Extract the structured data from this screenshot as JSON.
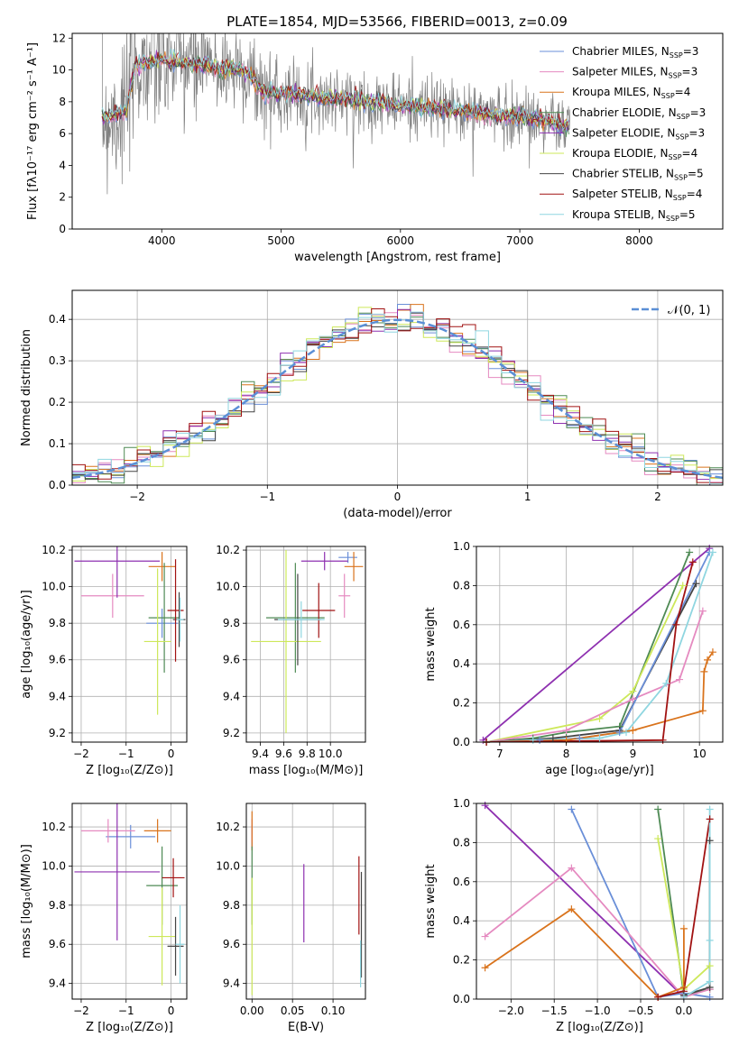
{
  "figure_title": "PLATE=1854, MJD=53566, FIBERID=0013, z=0.09",
  "series": [
    {
      "name": "Chabrier MILES",
      "nssp": "3",
      "color": "#6a8fd8"
    },
    {
      "name": "Salpeter MILES",
      "nssp": "3",
      "color": "#e58ac0"
    },
    {
      "name": "Kroupa MILES",
      "nssp": "4",
      "color": "#d9731c"
    },
    {
      "name": "Chabrier ELODIE",
      "nssp": "3",
      "color": "#4e8a54"
    },
    {
      "name": "Salpeter ELODIE",
      "nssp": "3",
      "color": "#8e30b0"
    },
    {
      "name": "Kroupa ELODIE",
      "nssp": "4",
      "color": "#cde85a"
    },
    {
      "name": "Chabrier STELIB",
      "nssp": "5",
      "color": "#444444"
    },
    {
      "name": "Salpeter STELIB",
      "nssp": "4",
      "color": "#a11212"
    },
    {
      "name": "Kroupa STELIB",
      "nssp": "5",
      "color": "#8fd6e0"
    }
  ],
  "chart_data": [
    {
      "id": "spectrum",
      "type": "line",
      "xlabel": "wavelength [Angstrom, rest frame]",
      "ylabel": "Flux [fλ10⁻¹⁷ erg cm⁻² s⁻¹ A⁻¹]",
      "xlim": [
        3250,
        8700
      ],
      "ylim": [
        0,
        12.3
      ],
      "xticks": [
        4000,
        5000,
        6000,
        7000,
        8000
      ],
      "yticks": [
        0,
        2,
        4,
        6,
        8,
        10,
        12
      ],
      "data_color": "#808080",
      "model_shape": [
        [
          3500,
          7.0
        ],
        [
          3700,
          7.4
        ],
        [
          3780,
          10.3
        ],
        [
          4000,
          10.6
        ],
        [
          4200,
          10.5
        ],
        [
          4400,
          10.2
        ],
        [
          4700,
          10.0
        ],
        [
          4850,
          8.6
        ],
        [
          5200,
          8.4
        ],
        [
          5600,
          8.1
        ],
        [
          6000,
          7.8
        ],
        [
          6400,
          7.5
        ],
        [
          6800,
          7.2
        ],
        [
          7200,
          6.9
        ],
        [
          7400,
          6.4
        ]
      ]
    },
    {
      "id": "residuals",
      "type": "histogram",
      "xlabel": "(data-model)/error",
      "ylabel": "Normed distribution",
      "xlim": [
        -2.5,
        2.5
      ],
      "ylim": [
        0,
        0.47
      ],
      "xticks": [
        -2,
        -1,
        0,
        1,
        2
      ],
      "yticks": [
        0.0,
        0.1,
        0.2,
        0.3,
        0.4
      ],
      "legend": "𝒩(0, 1)",
      "gaussian": {
        "mean": 0,
        "sigma": 1,
        "color": "#5b8fd6"
      },
      "bin_width": 0.1
    },
    {
      "id": "age-vs-Z",
      "type": "errorbar",
      "xlabel": "Z [log₁₀(Z/Z⊙)]",
      "ylabel": "age  [log₁₀(age/yr)]",
      "xlim": [
        -2.2,
        0.35
      ],
      "ylim": [
        9.15,
        10.22
      ],
      "xticks": [
        -2,
        -1,
        0
      ],
      "yticks": [
        9.2,
        9.4,
        9.6,
        9.8,
        10.0,
        10.2
      ],
      "points": [
        {
          "s": 0,
          "x": -0.2,
          "y": 9.8,
          "xerr": 0.35,
          "yerr": 0.08
        },
        {
          "s": 1,
          "x": -1.3,
          "y": 9.95,
          "xerr": 0.7,
          "yerr": 0.12
        },
        {
          "s": 2,
          "x": -0.2,
          "y": 10.11,
          "xerr": 0.3,
          "yerr": 0.08
        },
        {
          "s": 3,
          "x": -0.15,
          "y": 9.83,
          "xerr": 0.35,
          "yerr": 0.3
        },
        {
          "s": 4,
          "x": -1.2,
          "y": 10.14,
          "xerr": 0.95,
          "yerr": 0.2
        },
        {
          "s": 5,
          "x": -0.3,
          "y": 9.7,
          "xerr": 0.3,
          "yerr": 0.4
        },
        {
          "s": 6,
          "x": 0.18,
          "y": 9.82,
          "xerr": 0.14,
          "yerr": 0.15
        },
        {
          "s": 7,
          "x": 0.1,
          "y": 9.87,
          "xerr": 0.18,
          "yerr": 0.28
        },
        {
          "s": 8,
          "x": 0.2,
          "y": 9.82,
          "xerr": 0.08,
          "yerr": 0.12
        }
      ]
    },
    {
      "id": "age-vs-mass",
      "type": "errorbar",
      "xlabel": "mass [log₁₀(M/M⊙)]",
      "ylabel": "",
      "xlim": [
        9.28,
        10.3
      ],
      "ylim": [
        9.15,
        10.22
      ],
      "xticks": [
        9.4,
        9.6,
        9.8,
        10.0
      ],
      "yticks": [
        9.2,
        9.4,
        9.6,
        9.8,
        10.0,
        10.2
      ],
      "points": [
        {
          "s": 0,
          "x": 10.15,
          "y": 10.16,
          "xerr": 0.08,
          "yerr": 0.03
        },
        {
          "s": 1,
          "x": 10.12,
          "y": 9.95,
          "xerr": 0.05,
          "yerr": 0.12
        },
        {
          "s": 2,
          "x": 10.2,
          "y": 10.11,
          "xerr": 0.08,
          "yerr": 0.08
        },
        {
          "s": 3,
          "x": 9.7,
          "y": 9.83,
          "xerr": 0.25,
          "yerr": 0.3
        },
        {
          "s": 4,
          "x": 9.95,
          "y": 10.14,
          "xerr": 0.2,
          "yerr": 0.05
        },
        {
          "s": 5,
          "x": 9.62,
          "y": 9.7,
          "xerr": 0.3,
          "yerr": 0.5
        },
        {
          "s": 6,
          "x": 9.72,
          "y": 9.82,
          "xerr": 0.2,
          "yerr": 0.25
        },
        {
          "s": 7,
          "x": 9.9,
          "y": 9.87,
          "xerr": 0.14,
          "yerr": 0.15
        },
        {
          "s": 8,
          "x": 9.75,
          "y": 9.82,
          "xerr": 0.2,
          "yerr": 0.1
        }
      ]
    },
    {
      "id": "mass-weight-vs-age",
      "type": "line",
      "xlabel": "age  [log₁₀(age/yr)]",
      "ylabel": "mass weight",
      "xlim": [
        6.65,
        10.35
      ],
      "ylim": [
        0,
        1
      ],
      "xticks": [
        7,
        8,
        9,
        10
      ],
      "yticks": [
        0.0,
        0.2,
        0.4,
        0.6,
        0.8,
        1.0
      ],
      "lines": [
        {
          "s": 4,
          "x": [
            6.75,
            10.15
          ],
          "y": [
            0.01,
            0.99
          ]
        },
        {
          "s": 3,
          "x": [
            6.8,
            7.5,
            8.0,
            8.8,
            9.85
          ],
          "y": [
            0.0,
            0.02,
            0.05,
            0.08,
            0.97
          ]
        },
        {
          "s": 5,
          "x": [
            6.8,
            8.5,
            9.0,
            9.75
          ],
          "y": [
            0.0,
            0.12,
            0.26,
            0.8
          ]
        },
        {
          "s": 1,
          "x": [
            6.8,
            8.0,
            9.0,
            9.7,
            10.05
          ],
          "y": [
            0.0,
            0.06,
            0.22,
            0.32,
            0.67
          ]
        },
        {
          "s": 6,
          "x": [
            6.8,
            7.8,
            8.8,
            9.95
          ],
          "y": [
            0.0,
            0.02,
            0.06,
            0.81
          ]
        },
        {
          "s": 0,
          "x": [
            6.8,
            7.6,
            8.2,
            8.8,
            10.15
          ],
          "y": [
            0.0,
            0.01,
            0.02,
            0.05,
            0.97
          ]
        },
        {
          "s": 8,
          "x": [
            6.8,
            7.5,
            8.5,
            8.9,
            9.5,
            10.2
          ],
          "y": [
            0.0,
            0.01,
            0.02,
            0.05,
            0.3,
            0.97
          ]
        },
        {
          "s": 2,
          "x": [
            6.8,
            8.0,
            9.0,
            10.05,
            10.07,
            10.12,
            10.2
          ],
          "y": [
            0.0,
            0.01,
            0.06,
            0.16,
            0.36,
            0.42,
            0.46
          ]
        },
        {
          "s": 7,
          "x": [
            6.8,
            9.45,
            9.65,
            9.9
          ],
          "y": [
            0.0,
            0.01,
            0.6,
            0.92
          ]
        }
      ]
    },
    {
      "id": "mass-vs-Z",
      "type": "errorbar",
      "xlabel": "Z [log₁₀(Z/Z⊙)]",
      "ylabel": "mass [log₁₀(M/M⊙)]",
      "xlim": [
        -2.2,
        0.35
      ],
      "ylim": [
        9.32,
        10.32
      ],
      "xticks": [
        -2,
        -1,
        0
      ],
      "yticks": [
        9.4,
        9.6,
        9.8,
        10.0,
        10.2
      ],
      "points": [
        {
          "s": 0,
          "x": -0.9,
          "y": 10.15,
          "xerr": 0.55,
          "yerr": 0.06
        },
        {
          "s": 1,
          "x": -1.4,
          "y": 10.18,
          "xerr": 0.6,
          "yerr": 0.06
        },
        {
          "s": 2,
          "x": -0.3,
          "y": 10.18,
          "xerr": 0.3,
          "yerr": 0.06
        },
        {
          "s": 3,
          "x": -0.2,
          "y": 9.9,
          "xerr": 0.35,
          "yerr": 0.2
        },
        {
          "s": 4,
          "x": -1.2,
          "y": 9.97,
          "xerr": 0.95,
          "yerr": 0.35
        },
        {
          "s": 5,
          "x": -0.2,
          "y": 9.64,
          "xerr": 0.3,
          "yerr": 0.25
        },
        {
          "s": 6,
          "x": 0.1,
          "y": 9.59,
          "xerr": 0.18,
          "yerr": 0.15
        },
        {
          "s": 7,
          "x": 0.05,
          "y": 9.94,
          "xerr": 0.25,
          "yerr": 0.1
        },
        {
          "s": 8,
          "x": 0.2,
          "y": 9.6,
          "xerr": 0.1,
          "yerr": 0.2
        }
      ]
    },
    {
      "id": "mass-vs-EBV",
      "type": "errorbar",
      "xlabel": "E(B-V)",
      "ylabel": "",
      "xlim": [
        -0.007,
        0.14
      ],
      "ylim": [
        9.32,
        10.32
      ],
      "xticks": [
        0.0,
        0.05,
        0.1
      ],
      "yticks": [
        9.4,
        9.6,
        9.8,
        10.0,
        10.2
      ],
      "points": [
        {
          "s": 0,
          "x": 0.0,
          "y": 10.15,
          "xerr": 0.0,
          "yerr": 0.06
        },
        {
          "s": 1,
          "x": 0.0,
          "y": 10.18,
          "xerr": 0.0,
          "yerr": 0.06
        },
        {
          "s": 2,
          "x": 0.0,
          "y": 10.18,
          "xerr": 0.0,
          "yerr": 0.1
        },
        {
          "s": 3,
          "x": 0.0,
          "y": 9.9,
          "xerr": 0.0,
          "yerr": 0.2
        },
        {
          "s": 4,
          "x": 0.064,
          "y": 9.81,
          "xerr": 0.0,
          "yerr": 0.2
        },
        {
          "s": 5,
          "x": 0.0,
          "y": 9.64,
          "xerr": 0.0,
          "yerr": 0.3
        },
        {
          "s": 6,
          "x": 0.135,
          "y": 9.7,
          "xerr": 0.0,
          "yerr": 0.27
        },
        {
          "s": 7,
          "x": 0.132,
          "y": 9.85,
          "xerr": 0.0,
          "yerr": 0.2
        },
        {
          "s": 8,
          "x": 0.134,
          "y": 9.5,
          "xerr": 0.0,
          "yerr": 0.12
        }
      ]
    },
    {
      "id": "mass-weight-vs-Z",
      "type": "line",
      "xlabel": "Z [log₁₀(Z/Z⊙)]",
      "ylabel": "mass weight",
      "xlim": [
        -2.4,
        0.45
      ],
      "ylim": [
        0,
        1
      ],
      "xticks": [
        -2.0,
        -1.5,
        -1.0,
        -0.5,
        0.0
      ],
      "yticks": [
        0.0,
        0.2,
        0.4,
        0.6,
        0.8,
        1.0
      ],
      "lines": [
        {
          "s": 4,
          "x": [
            -2.3,
            0.0
          ],
          "y": [
            0.99,
            0.01
          ]
        },
        {
          "s": 0,
          "x": [
            -1.3,
            -0.3,
            0.0,
            0.3
          ],
          "y": [
            0.97,
            0.01,
            0.03,
            0.01
          ]
        },
        {
          "s": 3,
          "x": [
            -0.3,
            0.0,
            0.3
          ],
          "y": [
            0.97,
            0.02,
            0.05
          ]
        },
        {
          "s": 5,
          "x": [
            -0.3,
            0.0,
            0.3
          ],
          "y": [
            0.82,
            0.05,
            0.17
          ]
        },
        {
          "s": 1,
          "x": [
            -2.3,
            -1.3,
            0.0,
            0.3
          ],
          "y": [
            0.32,
            0.67,
            0.01,
            0.05
          ]
        },
        {
          "s": 2,
          "x": [
            -2.3,
            -1.3,
            -0.3,
            0.0,
            0.0
          ],
          "y": [
            0.16,
            0.46,
            0.01,
            0.06,
            0.36
          ]
        },
        {
          "s": 7,
          "x": [
            -0.3,
            0.0,
            0.3
          ],
          "y": [
            0.01,
            0.04,
            0.92
          ]
        },
        {
          "s": 6,
          "x": [
            0.0,
            0.3,
            0.3
          ],
          "y": [
            0.02,
            0.06,
            0.81
          ]
        },
        {
          "s": 8,
          "x": [
            0.0,
            0.3,
            0.3,
            0.3
          ],
          "y": [
            0.01,
            0.09,
            0.3,
            0.97
          ]
        }
      ]
    }
  ]
}
